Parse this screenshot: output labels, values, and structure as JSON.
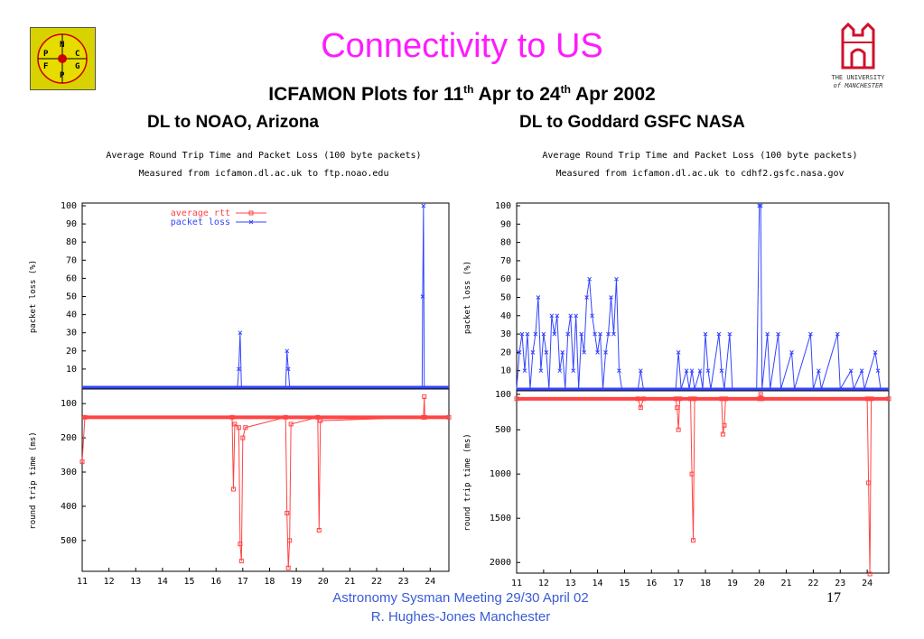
{
  "slide": {
    "title": "Connectivity to US",
    "subtitle_parts": [
      "ICFAMON Plots for 11",
      "th",
      " Apr to 24",
      "th",
      "  Apr 2002"
    ],
    "left_heading": "DL to NOAO, Arizona",
    "right_heading": "DL to Goddard GSFC NASA",
    "footer_line1": "Astronomy Sysman Meeting  29/30 April 02",
    "footer_line2": "R. Hughes-Jones  Manchester",
    "page_number": "17",
    "left_logo_letters": [
      "N",
      "P",
      "C",
      "F",
      "G",
      "P"
    ],
    "right_logo_text": [
      "THE UNIVERSITY",
      "of MANCHESTER"
    ]
  },
  "colors": {
    "title": "#ff1bff",
    "rtt": "#ff4444",
    "loss": "#3344ff",
    "footer": "#3a5bd6"
  },
  "chart_data": [
    {
      "type": "line",
      "title": "Average Round Trip Time and Packet Loss (100 byte packets)",
      "subtitle": "Measured from icfamon.dl.ac.uk to ftp.noao.edu",
      "x_ticks": [
        "11",
        "12",
        "13",
        "14",
        "15",
        "16",
        "17",
        "18",
        "19",
        "20",
        "21",
        "22",
        "23",
        "24"
      ],
      "xlim": [
        11,
        24.7
      ],
      "legend": [
        "average rtt",
        "packet loss"
      ],
      "legend_position": "top-left",
      "loss": {
        "ylabel": "packet loss (%)",
        "yticks": [
          10,
          20,
          30,
          40,
          50,
          60,
          70,
          80,
          90,
          100
        ],
        "ylim": [
          0,
          100
        ],
        "points": [
          [
            11,
            0
          ],
          [
            16.8,
            0
          ],
          [
            16.85,
            10
          ],
          [
            16.9,
            30
          ],
          [
            16.95,
            0
          ],
          [
            18.6,
            0
          ],
          [
            18.65,
            20
          ],
          [
            18.7,
            10
          ],
          [
            18.75,
            0
          ],
          [
            23.7,
            0
          ],
          [
            23.72,
            50
          ],
          [
            23.75,
            100
          ],
          [
            23.78,
            0
          ],
          [
            24.7,
            0
          ]
        ]
      },
      "rtt": {
        "ylabel": "round trip time (ms)",
        "yticks": [
          100,
          200,
          300,
          400,
          500
        ],
        "ylim": [
          590,
          60
        ],
        "baseline": 140,
        "points": [
          [
            11,
            270
          ],
          [
            11.1,
            140
          ],
          [
            16.6,
            140
          ],
          [
            16.65,
            350
          ],
          [
            16.7,
            160
          ],
          [
            16.85,
            170
          ],
          [
            16.9,
            510
          ],
          [
            16.95,
            560
          ],
          [
            17,
            200
          ],
          [
            17.1,
            170
          ],
          [
            18.6,
            140
          ],
          [
            18.65,
            420
          ],
          [
            18.7,
            580
          ],
          [
            18.75,
            500
          ],
          [
            18.8,
            160
          ],
          [
            19.8,
            140
          ],
          [
            19.85,
            470
          ],
          [
            19.9,
            150
          ],
          [
            23.75,
            140
          ],
          [
            23.78,
            80
          ],
          [
            23.8,
            140
          ],
          [
            24.7,
            140
          ]
        ]
      }
    },
    {
      "type": "line",
      "title": "Average Round Trip Time and Packet Loss (100 byte packets)",
      "subtitle": "Measured from icfamon.dl.ac.uk to cdhf2.gsfc.nasa.gov",
      "x_ticks": [
        "11",
        "12",
        "13",
        "14",
        "15",
        "16",
        "17",
        "18",
        "19",
        "20",
        "21",
        "22",
        "23",
        "24"
      ],
      "xlim": [
        11,
        24.8
      ],
      "loss": {
        "ylabel": "packet loss (%)",
        "yticks": [
          10,
          20,
          30,
          40,
          50,
          60,
          70,
          80,
          90,
          100
        ],
        "ylim": [
          0,
          100
        ],
        "points": [
          [
            11,
            0
          ],
          [
            11.1,
            20
          ],
          [
            11.2,
            30
          ],
          [
            11.3,
            10
          ],
          [
            11.4,
            30
          ],
          [
            11.5,
            0
          ],
          [
            11.6,
            20
          ],
          [
            11.7,
            30
          ],
          [
            11.8,
            50
          ],
          [
            11.9,
            10
          ],
          [
            12,
            30
          ],
          [
            12.1,
            20
          ],
          [
            12.2,
            0
          ],
          [
            12.3,
            40
          ],
          [
            12.4,
            30
          ],
          [
            12.5,
            40
          ],
          [
            12.6,
            10
          ],
          [
            12.7,
            20
          ],
          [
            12.8,
            0
          ],
          [
            12.9,
            30
          ],
          [
            13,
            40
          ],
          [
            13.1,
            10
          ],
          [
            13.2,
            40
          ],
          [
            13.3,
            0
          ],
          [
            13.4,
            30
          ],
          [
            13.5,
            20
          ],
          [
            13.6,
            50
          ],
          [
            13.7,
            60
          ],
          [
            13.8,
            40
          ],
          [
            13.9,
            30
          ],
          [
            14,
            20
          ],
          [
            14.1,
            30
          ],
          [
            14.2,
            0
          ],
          [
            14.3,
            20
          ],
          [
            14.4,
            30
          ],
          [
            14.5,
            50
          ],
          [
            14.6,
            30
          ],
          [
            14.7,
            60
          ],
          [
            14.8,
            10
          ],
          [
            14.9,
            0
          ],
          [
            15.5,
            0
          ],
          [
            15.6,
            10
          ],
          [
            15.7,
            0
          ],
          [
            16.9,
            0
          ],
          [
            17,
            20
          ],
          [
            17.1,
            0
          ],
          [
            17.3,
            10
          ],
          [
            17.4,
            0
          ],
          [
            17.5,
            10
          ],
          [
            17.6,
            0
          ],
          [
            17.8,
            10
          ],
          [
            17.9,
            0
          ],
          [
            18,
            30
          ],
          [
            18.1,
            10
          ],
          [
            18.2,
            0
          ],
          [
            18.5,
            30
          ],
          [
            18.6,
            10
          ],
          [
            18.7,
            0
          ],
          [
            18.9,
            30
          ],
          [
            19,
            0
          ],
          [
            19.9,
            0
          ],
          [
            20,
            100
          ],
          [
            20.05,
            100
          ],
          [
            20.1,
            0
          ],
          [
            20.3,
            30
          ],
          [
            20.4,
            0
          ],
          [
            20.7,
            30
          ],
          [
            20.8,
            0
          ],
          [
            21.2,
            20
          ],
          [
            21.3,
            0
          ],
          [
            21.9,
            30
          ],
          [
            22,
            0
          ],
          [
            22.2,
            10
          ],
          [
            22.3,
            0
          ],
          [
            22.9,
            30
          ],
          [
            23,
            0
          ],
          [
            23.4,
            10
          ],
          [
            23.5,
            0
          ],
          [
            23.8,
            10
          ],
          [
            23.9,
            0
          ],
          [
            24.3,
            20
          ],
          [
            24.4,
            10
          ],
          [
            24.5,
            0
          ],
          [
            24.8,
            0
          ]
        ]
      },
      "rtt": {
        "ylabel": "round trip time (ms)",
        "yticks": [
          100,
          500,
          1000,
          1500,
          2000
        ],
        "ylim": [
          2120,
          70
        ],
        "baseline": 150,
        "points": [
          [
            11,
            150
          ],
          [
            15.5,
            150
          ],
          [
            15.6,
            250
          ],
          [
            15.7,
            150
          ],
          [
            16.9,
            150
          ],
          [
            16.95,
            250
          ],
          [
            17,
            500
          ],
          [
            17.05,
            150
          ],
          [
            17.45,
            150
          ],
          [
            17.5,
            1000
          ],
          [
            17.55,
            1750
          ],
          [
            17.6,
            150
          ],
          [
            18.6,
            150
          ],
          [
            18.65,
            550
          ],
          [
            18.7,
            450
          ],
          [
            18.75,
            150
          ],
          [
            20,
            150
          ],
          [
            20.05,
            100
          ],
          [
            20.1,
            150
          ],
          [
            24,
            150
          ],
          [
            24.05,
            1100
          ],
          [
            24.1,
            2130
          ],
          [
            24.15,
            150
          ],
          [
            24.8,
            150
          ]
        ]
      }
    }
  ]
}
